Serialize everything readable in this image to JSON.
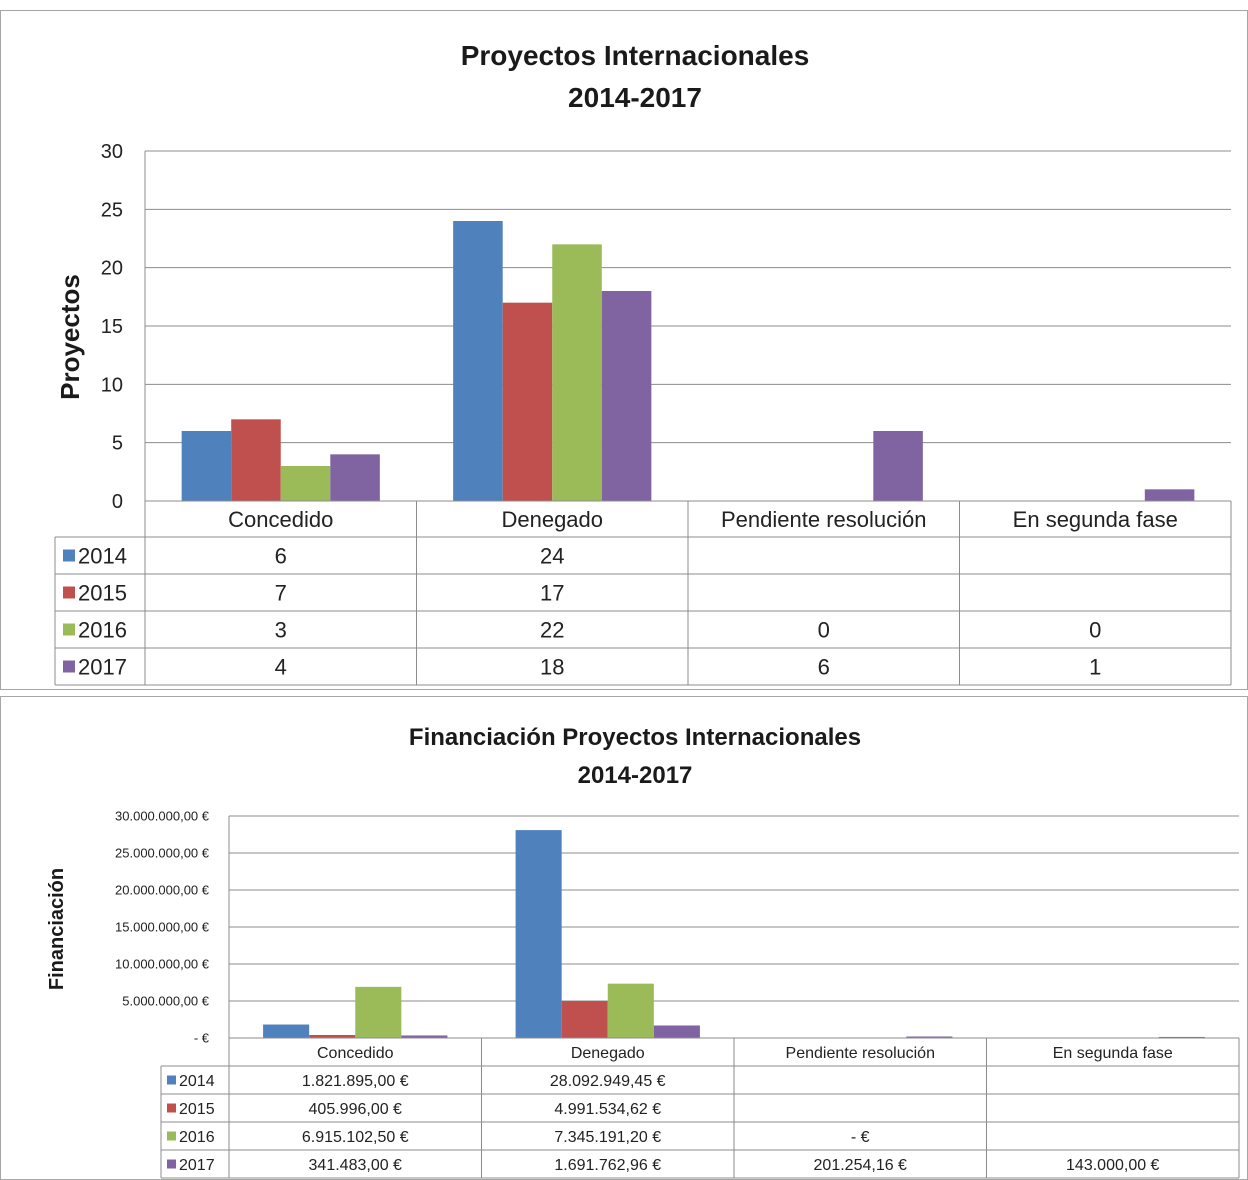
{
  "chart_data": [
    {
      "type": "bar",
      "title": "Proyectos Internacionales",
      "subtitle": "2014-2017",
      "ylabel": "Proyectos",
      "xlabel": "",
      "ylim": [
        0,
        30
      ],
      "yticks": [
        "30",
        "25",
        "20",
        "15",
        "10",
        "5",
        "0"
      ],
      "ytick_values": [
        30,
        25,
        20,
        15,
        10,
        5,
        0
      ],
      "grid": true,
      "categories": [
        "Concedido",
        "Denegado",
        "Pendiente resolución",
        "En segunda fase"
      ],
      "series": [
        {
          "name": "2014",
          "color": "#4f81bd",
          "values": [
            6,
            24,
            null,
            null
          ],
          "labels": [
            "6",
            "24",
            "",
            ""
          ]
        },
        {
          "name": "2015",
          "color": "#c0504d",
          "values": [
            7,
            17,
            null,
            null
          ],
          "labels": [
            "7",
            "17",
            "",
            ""
          ]
        },
        {
          "name": "2016",
          "color": "#9bbb59",
          "values": [
            3,
            22,
            0,
            0
          ],
          "labels": [
            "3",
            "22",
            "0",
            "0"
          ]
        },
        {
          "name": "2017",
          "color": "#8064a2",
          "values": [
            4,
            18,
            6,
            1
          ],
          "labels": [
            "4",
            "18",
            "6",
            "1"
          ]
        }
      ],
      "legend": "data-table"
    },
    {
      "type": "bar",
      "title": "Financiación Proyectos Internacionales",
      "subtitle": "2014-2017",
      "ylabel": "Financiación",
      "xlabel": "",
      "ylim": [
        0,
        30000000
      ],
      "yticks": [
        "30.000.000,00 €",
        "25.000.000,00 €",
        "20.000.000,00 €",
        "15.000.000,00 €",
        "10.000.000,00 €",
        "5.000.000,00 €",
        "- €"
      ],
      "ytick_values": [
        30000000,
        25000000,
        20000000,
        15000000,
        10000000,
        5000000,
        0
      ],
      "grid": true,
      "categories": [
        "Concedido",
        "Denegado",
        "Pendiente resolución",
        "En segunda fase"
      ],
      "series": [
        {
          "name": "2014",
          "color": "#4f81bd",
          "values": [
            1821895.0,
            28092949.45,
            null,
            null
          ],
          "labels": [
            "1.821.895,00 €",
            "28.092.949,45 €",
            "",
            ""
          ]
        },
        {
          "name": "2015",
          "color": "#c0504d",
          "values": [
            405996.0,
            4991534.62,
            null,
            null
          ],
          "labels": [
            "405.996,00 €",
            "4.991.534,62 €",
            "",
            ""
          ]
        },
        {
          "name": "2016",
          "color": "#9bbb59",
          "values": [
            6915102.5,
            7345191.2,
            0,
            null
          ],
          "labels": [
            "6.915.102,50 €",
            "7.345.191,20 €",
            "- €",
            ""
          ]
        },
        {
          "name": "2017",
          "color": "#8064a2",
          "values": [
            341483.0,
            1691762.96,
            201254.16,
            143000.0
          ],
          "labels": [
            "341.483,00 €",
            "1.691.762,96 €",
            "201.254,16 €",
            "143.000,00 €"
          ]
        }
      ],
      "legend": "data-table"
    }
  ]
}
